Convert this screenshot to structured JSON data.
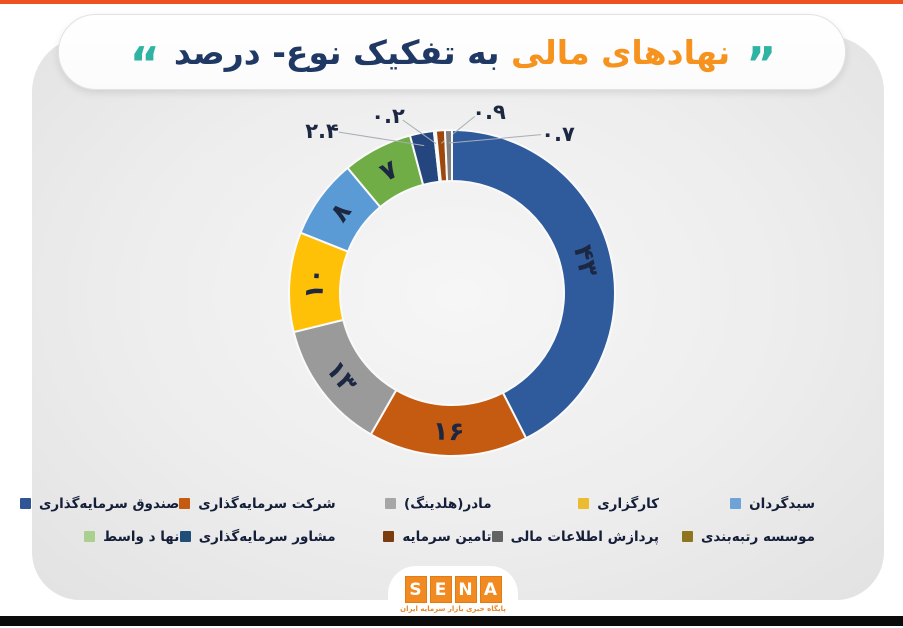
{
  "title": {
    "highlight": "نهادهای مالی",
    "rest": "به تفکیک نوع- درصد",
    "open_quote": "“",
    "close_quote": "”",
    "quote_color": "#2FB3A3",
    "highlight_color": "#F6921E",
    "rest_color": "#1F3864"
  },
  "chart_data": {
    "type": "pie",
    "subtype": "donut",
    "title": "نهادهای مالی به تفکیک نوع- درصد",
    "unit": "درصد",
    "direction": "clockwise",
    "start_angle_deg": 0,
    "legend_position": "bottom",
    "segments": [
      {
        "label": "صندوق سرمایه‌گذاری",
        "value": 43,
        "value_fa": "۴۳",
        "color": "#2F5B9D"
      },
      {
        "label": "شرکت سرمایه‌گذاری",
        "value": 16,
        "value_fa": "۱۶",
        "color": "#C55A11"
      },
      {
        "label": "مادر(هلدینگ)",
        "value": 13,
        "value_fa": "۱۳",
        "color": "#9A9A9A"
      },
      {
        "label": "کارگزاری",
        "value": 10,
        "value_fa": "۱۰",
        "color": "#FFC008"
      },
      {
        "label": "سبدگردان",
        "value": 8,
        "value_fa": "۸",
        "color": "#5B9BD5"
      },
      {
        "label": "نها د واسط",
        "value": 7,
        "value_fa": "۷",
        "color": "#70AD47"
      },
      {
        "label": "مشاور سرمایه‌گذاری",
        "value": 2.4,
        "value_fa": "۲.۴",
        "color": "#24457E"
      },
      {
        "label": "موسسه رتبه‌بندی",
        "value": 0.2,
        "value_fa": "۰.۲",
        "color": "#997300"
      },
      {
        "label": "تامین سرمایه",
        "value": 0.9,
        "value_fa": "۰.۹",
        "color": "#9E480E"
      },
      {
        "label": "پردازش اطلاعات مالی",
        "value": 0.7,
        "value_fa": "۰.۷",
        "color": "#7F7F7F"
      }
    ]
  },
  "legend": {
    "rows": [
      [
        {
          "label": "سبدگردان",
          "color": "#6FA3D8"
        },
        {
          "label": "کارگزاری",
          "color": "#EDBB2F"
        },
        {
          "label": "مادر(هلدینگ)",
          "color": "#A6A6A6"
        },
        {
          "label": "شرکت سرمایه‌گذاری",
          "color": "#C55A11"
        },
        {
          "label": "صندوق سرمایه‌گذاری",
          "color": "#2F5597"
        }
      ],
      [
        {
          "label": "موسسه رتبه‌بندی",
          "color": "#8F751E"
        },
        {
          "label": "پردازش اطلاعات مالی",
          "color": "#636363"
        },
        {
          "label": "تامین سرمایه",
          "color": "#7B3C10"
        },
        {
          "label": "مشاور سرمایه‌گذاری",
          "color": "#1F4E79"
        },
        {
          "label": "نها د واسط",
          "color": "#A9D08E"
        }
      ]
    ]
  },
  "logo": {
    "letters": [
      "S",
      "E",
      "N",
      "A"
    ],
    "tagline": "پایگاه خبری بازار سرمایه ایران",
    "tile_color": "#F18A21"
  }
}
